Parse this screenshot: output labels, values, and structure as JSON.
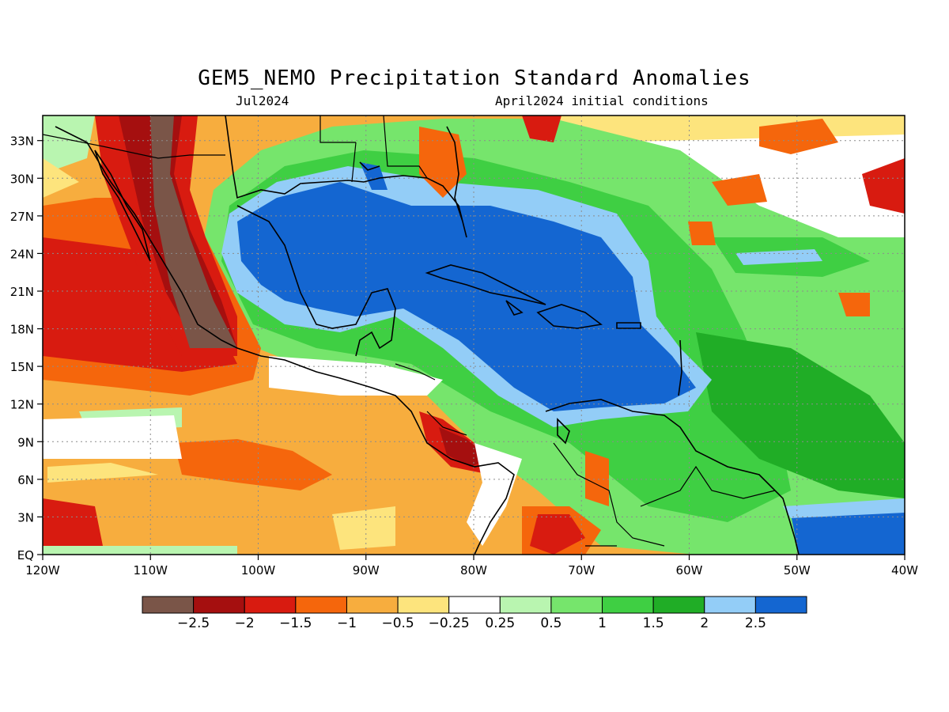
{
  "title": "GEM5_NEMO Precipitation Standard Anomalies",
  "subtitle_left": "Jul2024",
  "subtitle_right": "April2024 initial conditions",
  "map": {
    "lon_range": [
      -120,
      -40
    ],
    "lat_range": [
      0,
      35
    ],
    "lon_ticks": [
      "120W",
      "110W",
      "100W",
      "90W",
      "80W",
      "70W",
      "60W",
      "50W",
      "40W"
    ],
    "lat_ticks": [
      "EQ",
      "3N",
      "6N",
      "9N",
      "12N",
      "15N",
      "18N",
      "21N",
      "24N",
      "27N",
      "30N",
      "33N"
    ],
    "grid": "dotted"
  },
  "colorbar": {
    "colors": [
      "#7a5548",
      "#a50f0f",
      "#d81b10",
      "#f5660c",
      "#f7ad3e",
      "#fde47d",
      "#ffffff",
      "#b9f5b0",
      "#76e56c",
      "#3fcf43",
      "#20ad26",
      "#93cdf7",
      "#1466d1"
    ],
    "labels": [
      "−2.5",
      "−2",
      "−1.5",
      "−1",
      "−0.5",
      "−0.25",
      "0.25",
      "0.5",
      "1",
      "1.5",
      "2",
      "2.5"
    ]
  },
  "colors": {
    "ocean_west_dry": "#f7ad3e",
    "caribbean_wet": "#1466d1",
    "land_outline": "#000000"
  }
}
